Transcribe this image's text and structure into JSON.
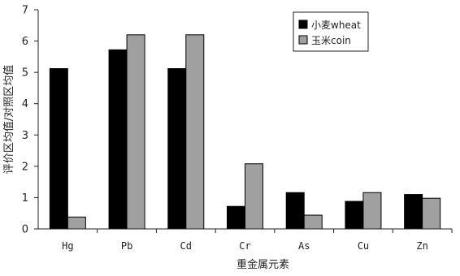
{
  "chart_data": {
    "type": "bar",
    "title": "",
    "xlabel": "重金属元素",
    "ylabel": "评价区均值/对照区均值",
    "ylim": [
      0,
      7
    ],
    "yticks": [
      0,
      1,
      2,
      3,
      4,
      5,
      6,
      7
    ],
    "grid": false,
    "legend_position": "top-right",
    "categories": [
      "Hg",
      "Pb",
      "Cd",
      "Cr",
      "As",
      "Cu",
      "Zn"
    ],
    "series": [
      {
        "name": "小麦wheat",
        "color": "#000000",
        "values": [
          5.12,
          5.72,
          5.12,
          0.72,
          1.16,
          0.88,
          1.1
        ]
      },
      {
        "name": "玉米coin",
        "color": "#a0a0a0",
        "values": [
          0.38,
          6.2,
          6.2,
          2.08,
          0.44,
          1.16,
          0.98
        ]
      }
    ]
  }
}
